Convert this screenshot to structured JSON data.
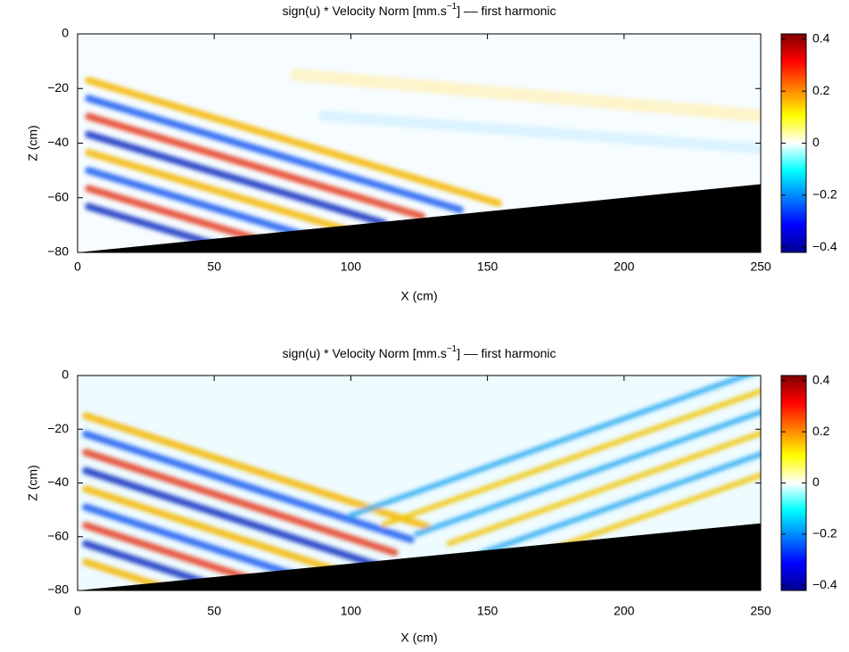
{
  "chart_data": [
    {
      "type": "heatmap",
      "title": [
        "sign(u) * Velocity Norm  [mm.s",
        "−1",
        "] –– first harmonic"
      ],
      "xlabel": "X (cm)",
      "ylabel": "Z (cm)",
      "xlim": [
        0,
        250
      ],
      "ylim": [
        -80,
        0
      ],
      "xticks": [
        0,
        50,
        100,
        150,
        200,
        250
      ],
      "yticks": [
        {
          "value": -80,
          "label": "−80"
        },
        {
          "value": -60,
          "label": "−60"
        },
        {
          "value": -40,
          "label": "−40"
        },
        {
          "value": -20,
          "label": "−20"
        },
        0
      ],
      "clim": [
        -0.42,
        0.42
      ],
      "cticks": [
        {
          "value": -0.4,
          "label": "−0.4"
        },
        {
          "value": -0.2,
          "label": "−0.2"
        },
        0,
        0.2,
        0.4
      ],
      "colormap": "jet",
      "bottom": {
        "x": [
          0,
          250
        ],
        "z": [
          -80,
          -55
        ],
        "color": "#000000"
      }
    },
    {
      "type": "heatmap",
      "title": [
        "sign(u) * Velocity Norm [mm.s",
        "−1",
        "] –– first harmonic"
      ],
      "xlabel": "X (cm)",
      "ylabel": "Z (cm)",
      "xlim": [
        0,
        250
      ],
      "ylim": [
        -80,
        0
      ],
      "xticks": [
        0,
        50,
        100,
        150,
        200,
        250
      ],
      "yticks": [
        {
          "value": -80,
          "label": "−80"
        },
        {
          "value": -60,
          "label": "−60"
        },
        {
          "value": -40,
          "label": "−40"
        },
        {
          "value": -20,
          "label": "−20"
        },
        0
      ],
      "clim": [
        -0.42,
        0.42
      ],
      "cticks": [
        {
          "value": -0.4,
          "label": "−0.4"
        },
        {
          "value": -0.2,
          "label": "−0.2"
        },
        0,
        0.2,
        0.4
      ],
      "colormap": "jet",
      "bottom": {
        "x": [
          0,
          250
        ],
        "z": [
          -80,
          -55
        ],
        "color": "#000000"
      }
    }
  ]
}
